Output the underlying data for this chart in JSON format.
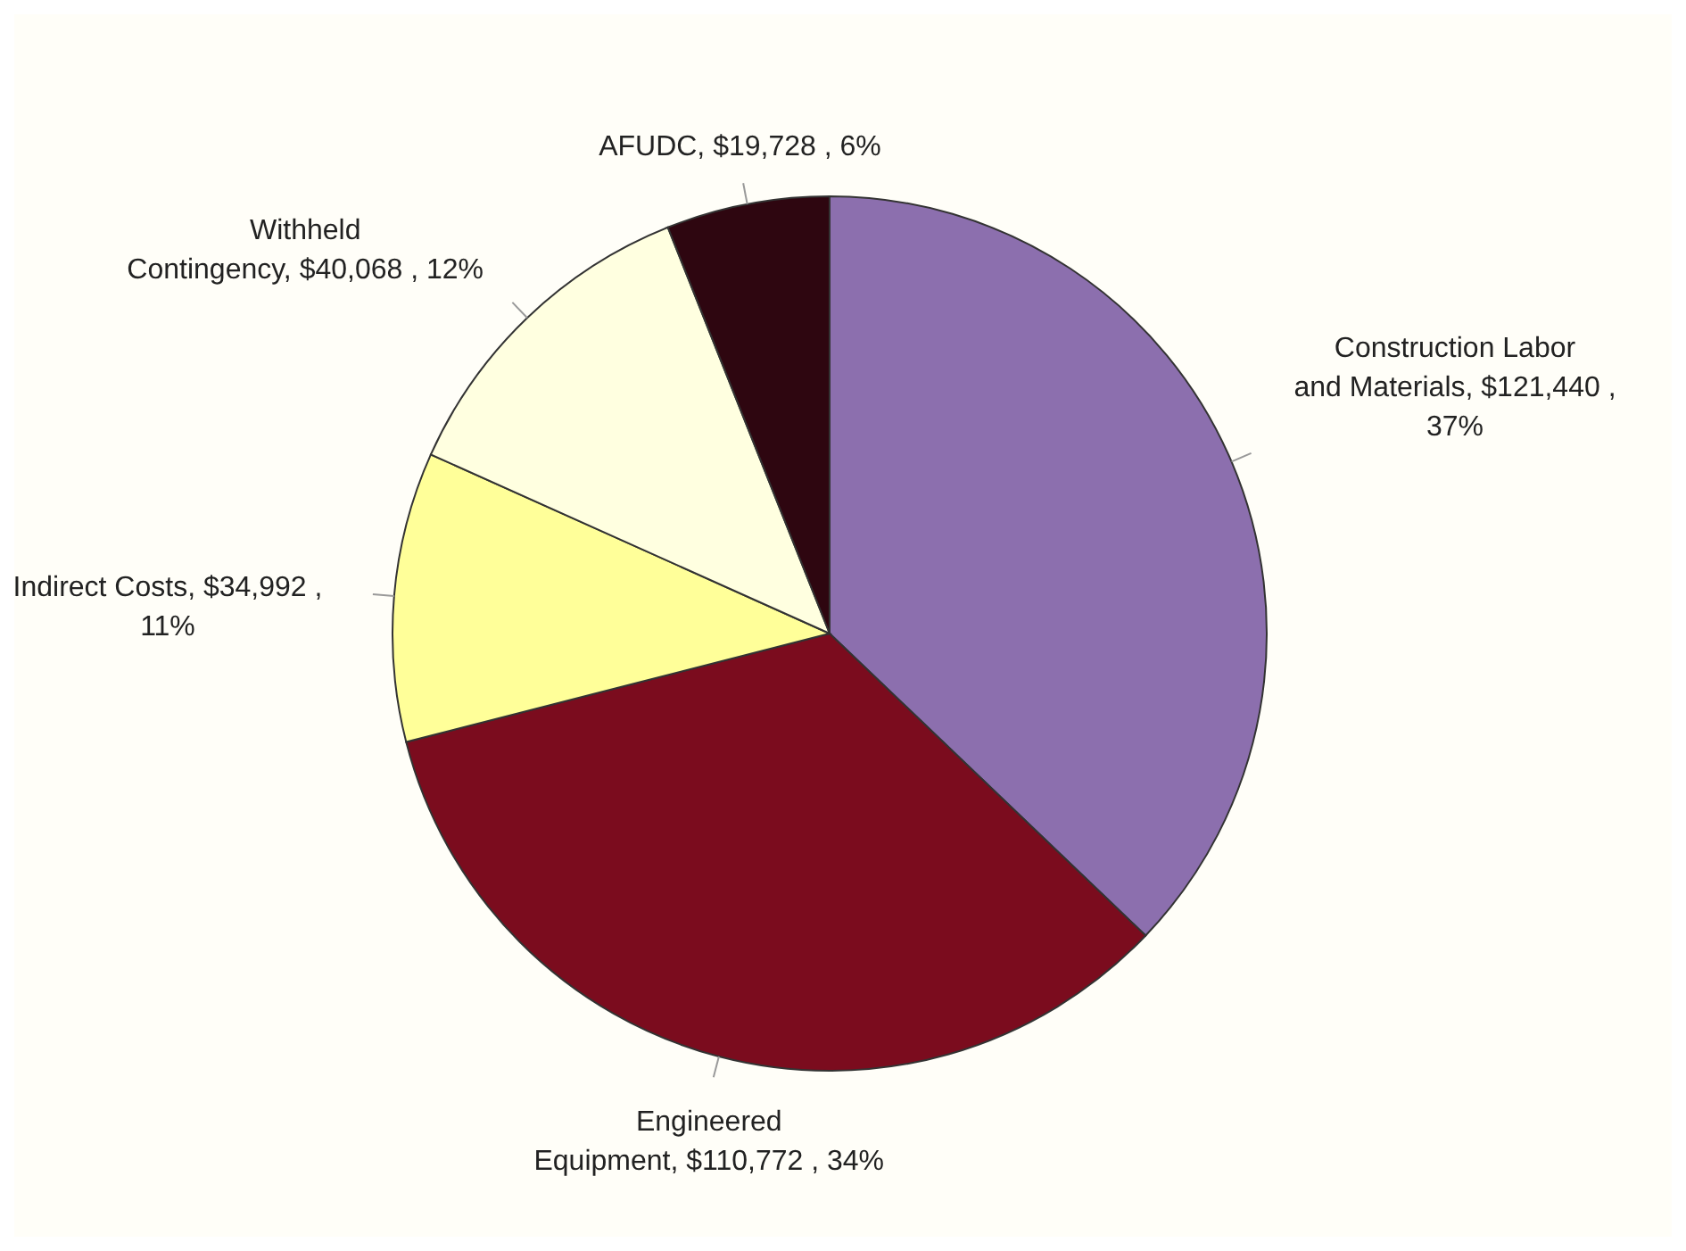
{
  "chart_data": {
    "type": "pie",
    "categories": [
      "Construction Labor and Materials",
      "Engineered Equipment",
      "Indirect Costs",
      "Withheld Contingency",
      "AFUDC"
    ],
    "values": [
      121440,
      110772,
      34992,
      40068,
      19728
    ],
    "value_labels": [
      "$121,440 , 37%",
      "$110,772 , 34%",
      "$34,992 , 11%",
      "$40,068 , 12%",
      "$19,728 , 6%"
    ],
    "colors": [
      "#8c6fae",
      "#7b0c1e",
      "#ffff99",
      "#ffffe0",
      "#2e0610"
    ],
    "legend": false
  }
}
